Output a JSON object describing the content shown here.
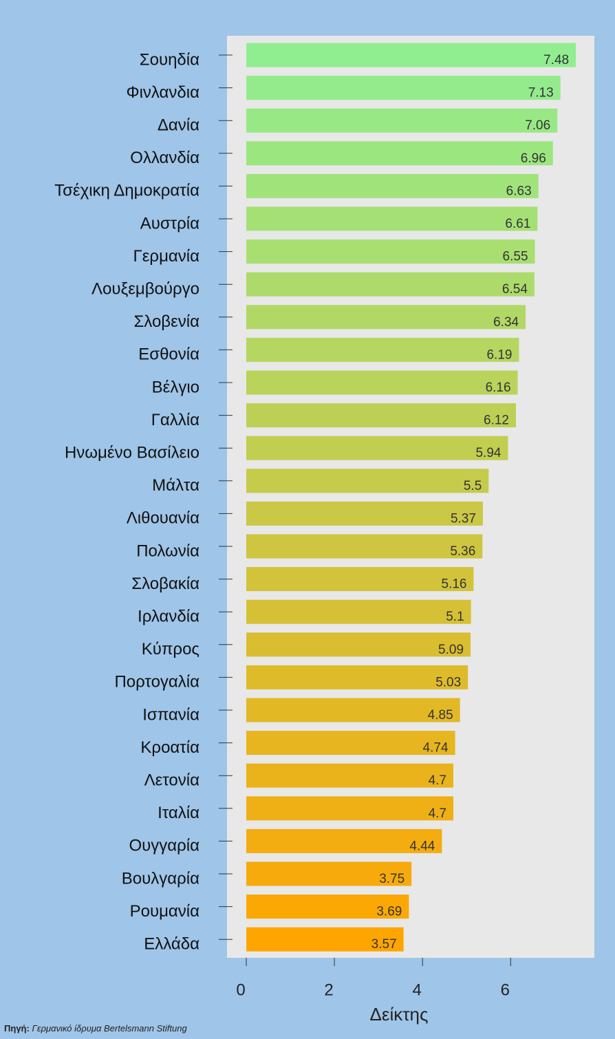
{
  "chart_data": {
    "type": "barh",
    "categories": [
      "Σουηδία",
      "Φινλανδια",
      "Δανία",
      "Ολλανδία",
      "Τσέχικη Δημοκρατία",
      "Αυστρία",
      "Γερμανία",
      "Λουξεμβούργο",
      "Σλοβενία",
      "Εσθονία",
      "Βέλγιο",
      "Γαλλία",
      "Ηνωμένο Βασίλειο",
      "Μάλτα",
      "Λιθουανία",
      "Πολωνία",
      "Σλοβακία",
      "Ιρλανδία",
      "Κύπρος",
      "Πορτογαλία",
      "Ισπανία",
      "Κροατία",
      "Λετονία",
      "Ιταλία",
      "Ουγγαρία",
      "Βουλγαρία",
      "Ρουμανία",
      "Ελλάδα"
    ],
    "values": [
      7.48,
      7.13,
      7.06,
      6.96,
      6.63,
      6.61,
      6.55,
      6.54,
      6.34,
      6.19,
      6.16,
      6.12,
      5.94,
      5.5,
      5.37,
      5.36,
      5.16,
      5.1,
      5.09,
      5.03,
      4.85,
      4.74,
      4.7,
      4.7,
      4.44,
      3.75,
      3.69,
      3.57
    ],
    "color_scale": [
      "#90ee90",
      "#ffa500"
    ],
    "xlim": [
      0,
      7.9
    ],
    "xticks": [
      0,
      2,
      4,
      6
    ],
    "xlabel": "Δείκτης",
    "source": {
      "label": "Πηγή:",
      "text": "Γερμανικό ίδρυμα  Bertelsmann Stiftung"
    }
  }
}
